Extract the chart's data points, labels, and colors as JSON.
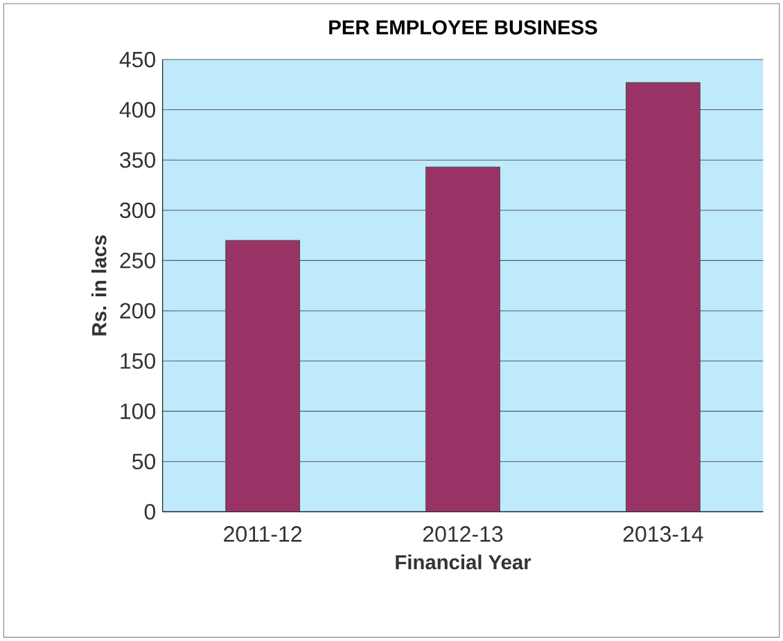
{
  "chart_data": {
    "type": "bar",
    "title": "PER EMPLOYEE BUSINESS",
    "xlabel": "Financial Year",
    "ylabel": "Rs. in lacs",
    "categories": [
      "2011-12",
      "2012-13",
      "2013-14"
    ],
    "values": [
      270,
      343,
      427
    ],
    "color": "#993366",
    "ylim": [
      0,
      450
    ],
    "yticks": [
      0,
      50,
      100,
      150,
      200,
      250,
      300,
      350,
      400,
      450
    ],
    "grid": "y"
  }
}
